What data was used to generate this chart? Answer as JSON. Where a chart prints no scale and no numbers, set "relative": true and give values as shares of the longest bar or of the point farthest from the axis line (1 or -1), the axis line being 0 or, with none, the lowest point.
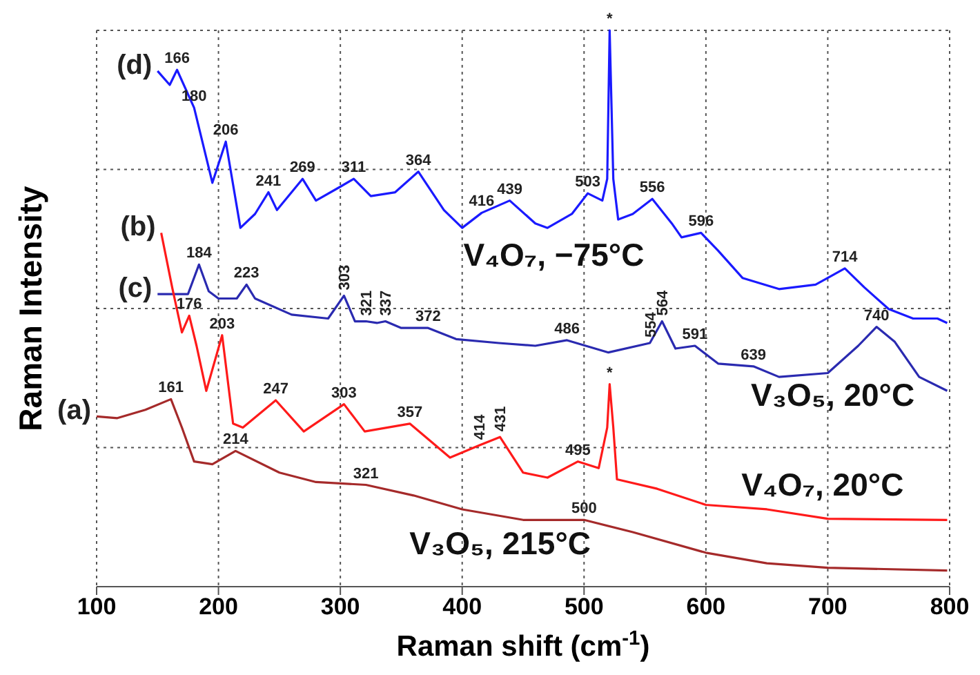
{
  "chart_data": {
    "type": "line",
    "relative": true,
    "xlabel": "Raman shift (cm$^{-1}$)",
    "ylabel": "Raman Intensity",
    "xlim": [
      100,
      800
    ],
    "xticks": [
      100,
      200,
      300,
      400,
      500,
      600,
      700,
      800
    ],
    "grid": true,
    "marker": "none",
    "line_style": "solid",
    "series": [
      {
        "name": "(d)",
        "color": "#1a1aff",
        "x": [
          150,
          160,
          166,
          180,
          195,
          206,
          218,
          230,
          241,
          248,
          269,
          280,
          300,
          311,
          325,
          345,
          364,
          385,
          400,
          416,
          439,
          460,
          470,
          490,
          503,
          515,
          519,
          521,
          524,
          528,
          540,
          556,
          572,
          580,
          596,
          610,
          630,
          660,
          690,
          700,
          714,
          730,
          750,
          770,
          790,
          798
        ],
        "values": [
          0.927,
          0.902,
          0.929,
          0.861,
          0.726,
          0.8,
          0.645,
          0.67,
          0.709,
          0.677,
          0.733,
          0.694,
          0.719,
          0.733,
          0.702,
          0.709,
          0.746,
          0.677,
          0.645,
          0.672,
          0.694,
          0.653,
          0.645,
          0.67,
          0.707,
          0.694,
          0.733,
          1.0,
          0.733,
          0.66,
          0.67,
          0.697,
          0.653,
          0.628,
          0.636,
          0.604,
          0.555,
          0.535,
          0.543,
          0.555,
          0.572,
          0.538,
          0.499,
          0.482,
          0.482,
          0.474
        ]
      },
      {
        "name": "(c)",
        "color": "#2a2ab0",
        "x": [
          150,
          175,
          184,
          192,
          200,
          215,
          223,
          230,
          260,
          290,
          303,
          312,
          321,
          330,
          337,
          350,
          372,
          395,
          430,
          460,
          486,
          520,
          554,
          564,
          575,
          591,
          610,
          639,
          660,
          700,
          725,
          740,
          755,
          775,
          798
        ],
        "values": [
          0.526,
          0.526,
          0.579,
          0.531,
          0.518,
          0.518,
          0.543,
          0.518,
          0.489,
          0.482,
          0.523,
          0.477,
          0.477,
          0.474,
          0.477,
          0.465,
          0.465,
          0.445,
          0.438,
          0.433,
          0.443,
          0.421,
          0.438,
          0.477,
          0.428,
          0.433,
          0.401,
          0.396,
          0.377,
          0.384,
          0.433,
          0.467,
          0.44,
          0.377,
          0.352
        ]
      },
      {
        "name": "(b)",
        "color": "#ff1a1a",
        "x": [
          153,
          162,
          170,
          176,
          182,
          190,
          203,
          212,
          220,
          247,
          270,
          303,
          320,
          357,
          390,
          414,
          431,
          450,
          470,
          495,
          512,
          519,
          521,
          524,
          527,
          560,
          600,
          650,
          700,
          798
        ],
        "values": [
          0.636,
          0.538,
          0.457,
          0.487,
          0.433,
          0.352,
          0.452,
          0.293,
          0.286,
          0.335,
          0.279,
          0.328,
          0.279,
          0.293,
          0.232,
          0.254,
          0.269,
          0.205,
          0.196,
          0.225,
          0.213,
          0.286,
          0.364,
          0.286,
          0.193,
          0.176,
          0.147,
          0.139,
          0.122,
          0.12
        ]
      },
      {
        "name": "(a)",
        "color": "#a52a2a",
        "x": [
          100,
          117,
          140,
          161,
          170,
          180,
          195,
          214,
          250,
          280,
          321,
          360,
          400,
          450,
          500,
          540,
          600,
          650,
          700,
          798
        ],
        "values": [
          0.306,
          0.303,
          0.318,
          0.337,
          0.286,
          0.225,
          0.22,
          0.244,
          0.205,
          0.188,
          0.183,
          0.164,
          0.139,
          0.12,
          0.12,
          0.098,
          0.061,
          0.042,
          0.034,
          0.029
        ]
      }
    ],
    "annotations": [
      {
        "text": "166",
        "x": 166,
        "y": 0.929
      },
      {
        "text": "180",
        "x": 180,
        "y": 0.861
      },
      {
        "text": "206",
        "x": 206,
        "y": 0.8
      },
      {
        "text": "241",
        "x": 241,
        "y": 0.709
      },
      {
        "text": "269",
        "x": 269,
        "y": 0.733
      },
      {
        "text": "311",
        "x": 311,
        "y": 0.733
      },
      {
        "text": "364",
        "x": 364,
        "y": 0.746
      },
      {
        "text": "416",
        "x": 416,
        "y": 0.672
      },
      {
        "text": "439",
        "x": 439,
        "y": 0.694
      },
      {
        "text": "503",
        "x": 503,
        "y": 0.707
      },
      {
        "text": "*",
        "x": 521,
        "y": 1.0
      },
      {
        "text": "556",
        "x": 556,
        "y": 0.697
      },
      {
        "text": "596",
        "x": 596,
        "y": 0.636
      },
      {
        "text": "714",
        "x": 714,
        "y": 0.572
      },
      "V₄O₇, −75°C",
      {
        "text": "184",
        "x": 184,
        "y": 0.579
      },
      {
        "text": "223",
        "x": 223,
        "y": 0.543
      },
      {
        "text": "303",
        "x": 303,
        "y": 0.523
      },
      {
        "text": "321",
        "x": 321,
        "y": 0.477
      },
      {
        "text": "337",
        "x": 337,
        "y": 0.477
      },
      {
        "text": "372",
        "x": 372,
        "y": 0.465
      },
      {
        "text": "486",
        "x": 486,
        "y": 0.443
      },
      {
        "text": "554",
        "x": 554,
        "y": 0.438
      },
      {
        "text": "564",
        "x": 564,
        "y": 0.477
      },
      {
        "text": "591",
        "x": 591,
        "y": 0.433
      },
      {
        "text": "639",
        "x": 639,
        "y": 0.396
      },
      {
        "text": "740",
        "x": 740,
        "y": 0.467
      },
      "V₃O₅, 20°C",
      {
        "text": "176",
        "x": 176,
        "y": 0.487
      },
      {
        "text": "203",
        "x": 203,
        "y": 0.452
      },
      {
        "text": "247",
        "x": 247,
        "y": 0.335
      },
      {
        "text": "303",
        "x": 303,
        "y": 0.328
      },
      {
        "text": "357",
        "x": 357,
        "y": 0.293
      },
      {
        "text": "414",
        "x": 414,
        "y": 0.254
      },
      {
        "text": "431",
        "x": 431,
        "y": 0.269
      },
      {
        "text": "495",
        "x": 495,
        "y": 0.225
      },
      {
        "text": "*",
        "x": 521,
        "y": 0.364
      },
      "V₄O₇, 20°C",
      {
        "text": "161",
        "x": 161,
        "y": 0.337
      },
      {
        "text": "214",
        "x": 214,
        "y": 0.244
      },
      {
        "text": "321",
        "x": 321,
        "y": 0.183
      },
      {
        "text": "500",
        "x": 500,
        "y": 0.12
      },
      "V₃O₅, 215°C"
    ]
  }
}
